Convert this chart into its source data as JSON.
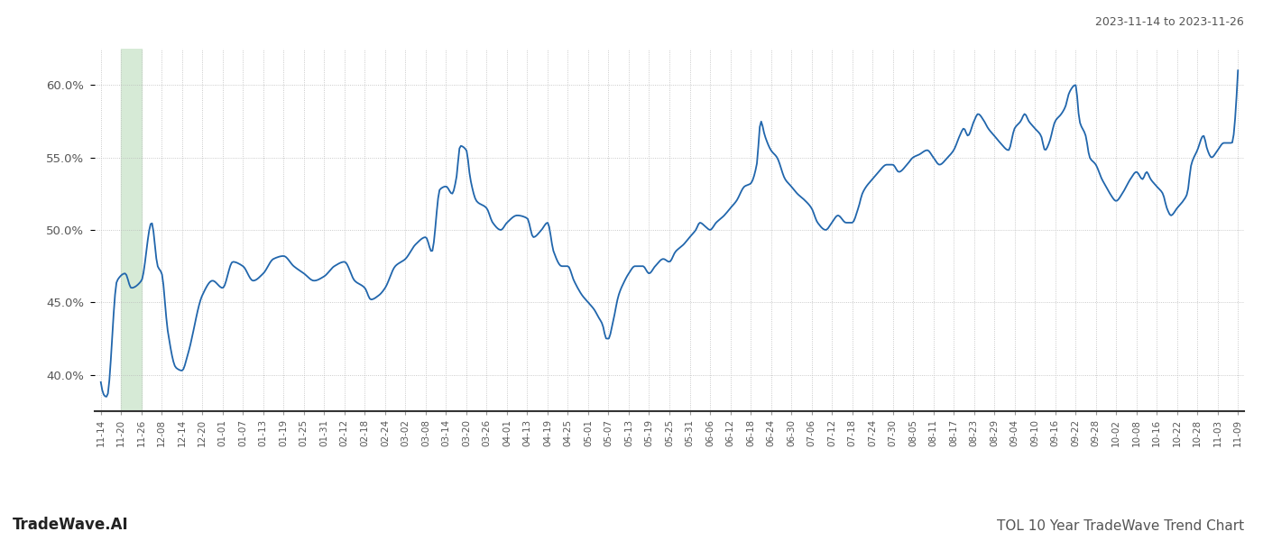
{
  "title_top_right": "2023-11-14 to 2023-11-26",
  "title_bottom_left": "TradeWave.AI",
  "title_bottom_right": "TOL 10 Year TradeWave Trend Chart",
  "line_color": "#2166ac",
  "background_color": "#ffffff",
  "grid_color": "#cccccc",
  "highlight_color": "#d6ead6",
  "ylim": [
    37.5,
    62.5
  ],
  "yticks": [
    40.0,
    45.0,
    50.0,
    55.0,
    60.0
  ],
  "x_labels": [
    "11-14",
    "11-20",
    "11-26",
    "12-08",
    "12-14",
    "12-20",
    "01-01",
    "01-07",
    "01-13",
    "01-19",
    "01-25",
    "01-31",
    "02-12",
    "02-18",
    "02-24",
    "03-02",
    "03-08",
    "03-14",
    "03-20",
    "03-26",
    "04-01",
    "04-13",
    "04-19",
    "04-25",
    "05-01",
    "05-07",
    "05-13",
    "05-19",
    "05-25",
    "05-31",
    "06-06",
    "06-12",
    "06-18",
    "06-24",
    "06-30",
    "07-06",
    "07-12",
    "07-18",
    "07-24",
    "07-30",
    "08-05",
    "08-11",
    "08-17",
    "08-23",
    "08-29",
    "09-04",
    "09-10",
    "09-16",
    "09-22",
    "09-28",
    "10-02",
    "10-08",
    "10-16",
    "10-22",
    "10-28",
    "11-03",
    "11-09"
  ]
}
